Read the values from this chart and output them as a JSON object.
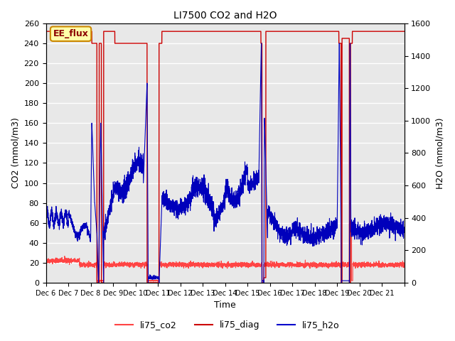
{
  "title": "LI7500 CO2 and H2O",
  "xlabel": "Time",
  "ylabel_left": "CO2 (mmol/m3)",
  "ylabel_right": "H2O (mmol/m3)",
  "ylim_left": [
    0,
    260
  ],
  "ylim_right": [
    0,
    1600
  ],
  "annotation_text": "EE_flux",
  "annotation_bg": "#ffffaa",
  "annotation_border": "#cc8800",
  "legend_entries": [
    "li75_co2",
    "li75_diag",
    "li75_h2o"
  ],
  "legend_colors": [
    "#ff4444",
    "#cc0000",
    "#0000cc"
  ],
  "co2_color": "#ff4444",
  "diag_color": "#cc0000",
  "h2o_color": "#0000bb",
  "bg_color": "#e8e8e8",
  "grid_color": "#ffffff",
  "xtick_positions": [
    0,
    1,
    2,
    3,
    4,
    5,
    6,
    7,
    8,
    9,
    10,
    11,
    12,
    13,
    14,
    15,
    16
  ],
  "xtick_labels": [
    "Dec 6",
    "Dec 7",
    "Dec 8",
    "Dec 9",
    "Dec 10",
    "Dec 11",
    "Dec 12",
    "Dec 13",
    "Dec 14",
    "Dec 15",
    "Dec 16",
    "Dec 17",
    "Dec 18",
    "Dec 19",
    "Dec 20",
    "Dec 21",
    ""
  ],
  "yticks_left": [
    0,
    20,
    40,
    60,
    80,
    100,
    120,
    140,
    160,
    180,
    200,
    220,
    240,
    260
  ],
  "yticks_right": [
    0,
    200,
    400,
    600,
    800,
    1000,
    1200,
    1400,
    1600
  ]
}
